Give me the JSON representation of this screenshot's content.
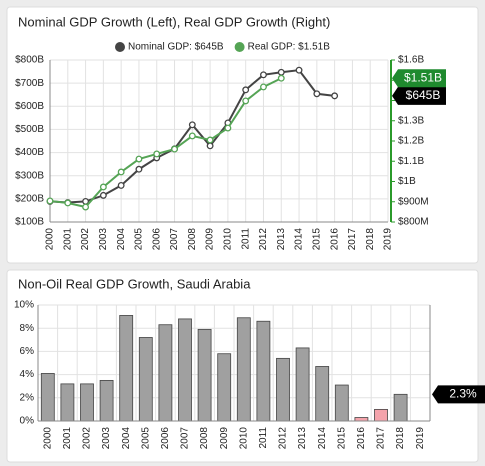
{
  "chart_data": [
    {
      "type": "line",
      "title": "Nominal GDP Growth (Left), Real GDP Growth (Right)",
      "categories": [
        "2000",
        "2001",
        "2002",
        "2003",
        "2004",
        "2005",
        "2006",
        "2007",
        "2008",
        "2009",
        "2010",
        "2011",
        "2012",
        "2013",
        "2014",
        "2015",
        "2016",
        "2017",
        "2018",
        "2019"
      ],
      "series": [
        {
          "name": "Nominal GDP: $645B",
          "color": "#444444",
          "end_label": "$645B",
          "values": [
            189,
            184,
            189,
            215,
            258,
            328,
            377,
            416,
            520,
            429,
            528,
            671,
            736,
            747,
            756,
            654,
            645,
            null,
            null,
            null
          ]
        },
        {
          "name": "Real GDP: $1.51B",
          "color": "#55a455",
          "axis": "y2",
          "end_label": "$1.51B",
          "values": [
            904,
            894,
            874,
            973,
            1047,
            1111,
            1136,
            1160,
            1225,
            1205,
            1264,
            1398,
            1467,
            1510,
            null,
            null,
            null,
            null,
            null,
            null
          ]
        }
      ],
      "ylim": [
        100,
        800
      ],
      "yticks": [
        {
          "value": 100,
          "label": "$100B"
        },
        {
          "value": 200,
          "label": "$200B"
        },
        {
          "value": 300,
          "label": "$300B"
        },
        {
          "value": 400,
          "label": "$400B"
        },
        {
          "value": 500,
          "label": "$500B"
        },
        {
          "value": 600,
          "label": "$600B"
        },
        {
          "value": 700,
          "label": "$700B"
        },
        {
          "value": 800,
          "label": "$800B"
        }
      ],
      "y2lim": [
        800,
        1600
      ],
      "y2ticks": [
        {
          "value": 800,
          "label": "$800M"
        },
        {
          "value": 900,
          "label": "$900M"
        },
        {
          "value": 1000,
          "label": "$1B"
        },
        {
          "value": 1100,
          "label": "$1.1B"
        },
        {
          "value": 1200,
          "label": "$1.2B"
        },
        {
          "value": 1300,
          "label": "$1.3B"
        },
        {
          "value": 1400,
          "label": "$1.4B"
        },
        {
          "value": 1500,
          "label": "$1.5B"
        },
        {
          "value": 1600,
          "label": "$1.6B"
        }
      ],
      "grid": true,
      "legend": "top"
    },
    {
      "type": "bar",
      "title": "Non-Oil Real GDP Growth, Saudi Arabia",
      "categories": [
        "2000",
        "2001",
        "2002",
        "2003",
        "2004",
        "2005",
        "2006",
        "2007",
        "2008",
        "2009",
        "2010",
        "2011",
        "2012",
        "2013",
        "2014",
        "2015",
        "2016",
        "2017",
        "2018",
        "2019"
      ],
      "values": [
        4.1,
        3.2,
        3.2,
        3.5,
        9.1,
        7.2,
        8.3,
        8.8,
        7.9,
        5.8,
        8.9,
        8.6,
        5.4,
        6.3,
        4.7,
        3.1,
        0.3,
        1.0,
        2.3,
        null
      ],
      "colors": [
        "#a0a0a0",
        "#a0a0a0",
        "#a0a0a0",
        "#a0a0a0",
        "#a0a0a0",
        "#a0a0a0",
        "#a0a0a0",
        "#a0a0a0",
        "#a0a0a0",
        "#a0a0a0",
        "#a0a0a0",
        "#a0a0a0",
        "#a0a0a0",
        "#a0a0a0",
        "#a0a0a0",
        "#a0a0a0",
        "#f4a3ab",
        "#f4a3ab",
        "#a0a0a0",
        "#a0a0a0"
      ],
      "end_label": "2.3%",
      "ylim": [
        0,
        10
      ],
      "yticks": [
        {
          "value": 0,
          "label": "0%"
        },
        {
          "value": 2,
          "label": "2%"
        },
        {
          "value": 4,
          "label": "4%"
        },
        {
          "value": 6,
          "label": "6%"
        },
        {
          "value": 8,
          "label": "8%"
        },
        {
          "value": 10,
          "label": "10%"
        }
      ],
      "grid": true
    }
  ]
}
